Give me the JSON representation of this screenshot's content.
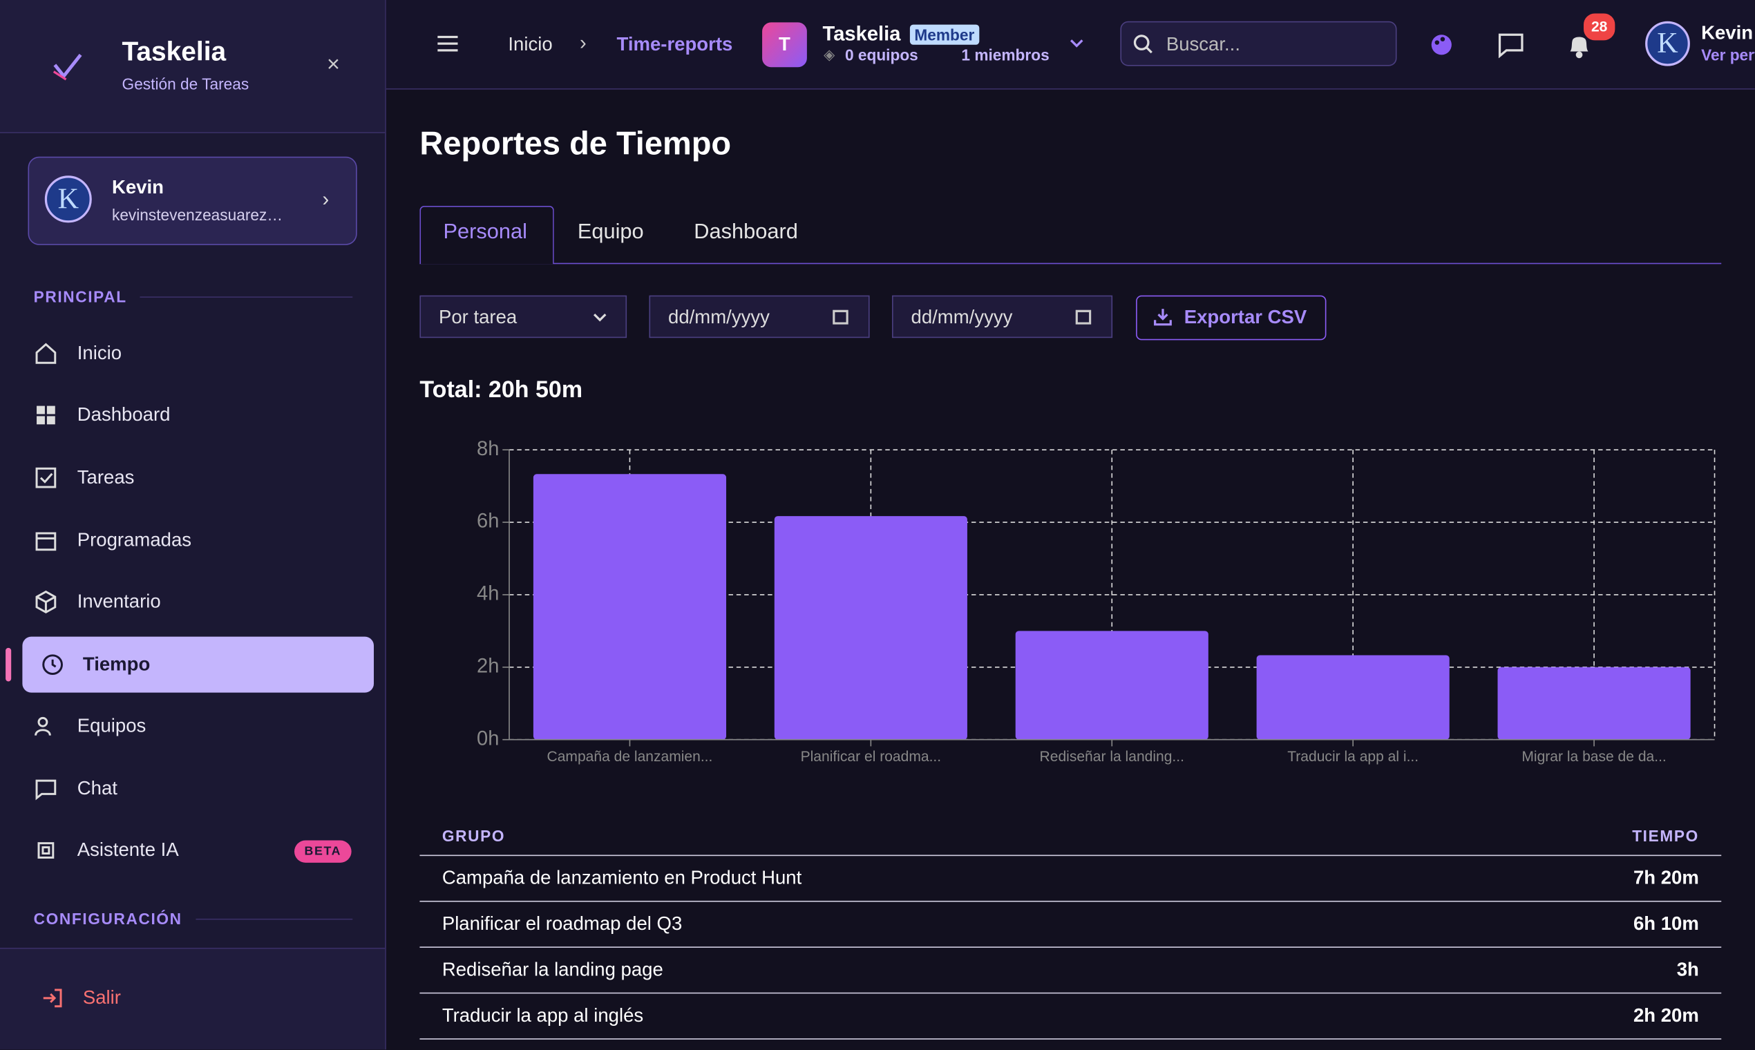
{
  "sidebar": {
    "brand": "Taskelia",
    "subtitle": "Gestión de Tareas",
    "user": {
      "name": "Kevin",
      "email": "kevinstevenzeasuarez…"
    },
    "sections": [
      "PRINCIPAL",
      "CONFIGURACIÓN"
    ],
    "nav": [
      "Inicio",
      "Dashboard",
      "Tareas",
      "Programadas",
      "Inventario",
      "Tiempo",
      "Equipos",
      "Chat",
      "Asistente IA"
    ],
    "badge": "BETA",
    "logout": "Salir"
  },
  "topbar": {
    "breadcrumb": [
      "Inicio",
      "Time-reports"
    ],
    "team": {
      "initial": "T",
      "name": "Taskelia",
      "role": "Member",
      "teams": "0 equipos",
      "members": "1 miembros"
    },
    "search": "Buscar...",
    "notifications": 28,
    "user": {
      "name": "Kevin",
      "link": "Ver perfil"
    }
  },
  "page": {
    "title": "Reportes de Tiempo",
    "tabs": [
      "Personal",
      "Equipo",
      "Dashboard"
    ],
    "filters": {
      "group": "Por tarea",
      "from": "dd/mm/yyyy",
      "to": "dd/mm/yyyy",
      "export": "Exportar CSV"
    },
    "total": "Total: 20h 50m"
  },
  "chart_data": {
    "type": "bar",
    "categories": [
      "Campaña de lanzamien...",
      "Planificar el roadma...",
      "Rediseñar la landing...",
      "Traducir la app al i...",
      "Migrar la base de da..."
    ],
    "values": [
      7.33,
      6.17,
      3,
      2.33,
      2
    ],
    "color": "#8b5cf6",
    "ylim": [
      0,
      8
    ],
    "yticks": [
      {
        "value": 0,
        "label": "0h"
      },
      {
        "value": 2,
        "label": "2h"
      },
      {
        "value": 4,
        "label": "4h"
      },
      {
        "value": 6,
        "label": "6h"
      },
      {
        "value": 8,
        "label": "8h"
      }
    ],
    "grid": true
  },
  "table": {
    "headers": [
      "GRUPO",
      "TIEMPO"
    ],
    "rows": [
      [
        "Campaña de lanzamiento en Product Hunt",
        "7h 20m"
      ],
      [
        "Planificar el roadmap del Q3",
        "6h 10m"
      ],
      [
        "Rediseñar la landing page",
        "3h"
      ],
      [
        "Traducir la app al inglés",
        "2h 20m"
      ]
    ]
  }
}
